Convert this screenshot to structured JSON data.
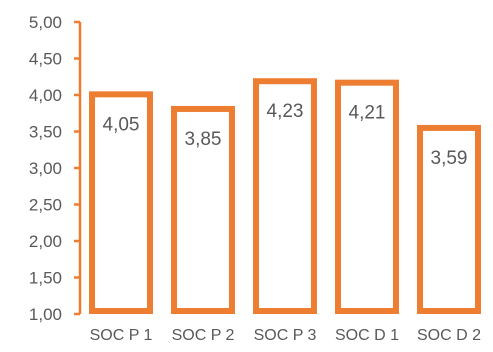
{
  "chart_data": {
    "type": "bar",
    "categories": [
      "SOC P 1",
      "SOC P 2",
      "SOC P 3",
      "SOC D 1",
      "SOC D 2"
    ],
    "values": [
      4.05,
      3.85,
      4.23,
      4.21,
      3.59
    ],
    "data_labels": [
      "4,05",
      "3,85",
      "4,23",
      "4,21",
      "3,59"
    ],
    "ylim": [
      1.0,
      5.0
    ],
    "y_ticks": [
      1.0,
      1.5,
      2.0,
      2.5,
      3.0,
      3.5,
      4.0,
      4.5,
      5.0
    ],
    "y_tick_labels": [
      "1,00",
      "1,50",
      "2,00",
      "2,50",
      "3,00",
      "3,50",
      "4,00",
      "4,50",
      "5,00"
    ],
    "title": "",
    "xlabel": "",
    "ylabel": "",
    "grid": false,
    "legend": "none",
    "bar_style": "outline",
    "bar_color": "#ED7D31",
    "axis_color": "#ED7D31",
    "text_color": "#595959"
  }
}
